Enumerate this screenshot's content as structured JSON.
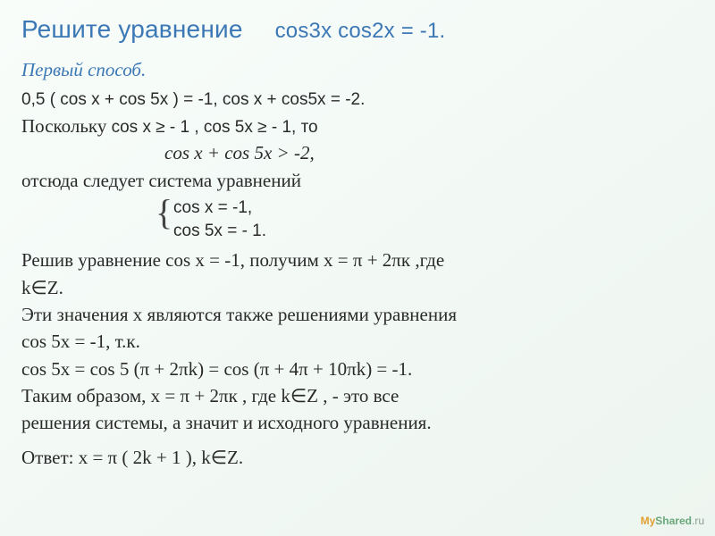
{
  "colors": {
    "title": "#3b78b5",
    "body_text": "#2a2a2a",
    "bg_top": "#f8fdfa",
    "bg_bottom": "#edf5f0",
    "logo_muted": "#8aa090",
    "logo_my": "#e0a030",
    "logo_shared": "#6aa87a"
  },
  "typography": {
    "title_family": "Arial",
    "title_size_pt": 21,
    "body_family": "Times New Roman",
    "body_size_pt": 16,
    "system_family": "Arial",
    "system_size_pt": 14
  },
  "title": {
    "label": "Решите уравнение",
    "equation": "cos3x  cos2x   =  -1."
  },
  "method_label": "Первый способ.",
  "line_transform": "0,5 ( cos x  +  cos 5x )  =  -1,      cos x  +  cos5x  =  -2.",
  "line_bound_prefix": "Поскольку ",
  "line_bound_mid": "cos x ≥  - 1 ,  cos 5x  ≥  - 1,   то",
  "line_bound_sum": "cos x  +  cos 5x  >  -2,",
  "line_hence": "отсюда следует система уравнений",
  "system": {
    "eq1": "cos x  =  -1,",
    "eq2": "cos 5x  =  - 1."
  },
  "para_solve1a": "Решив уравнение cos x  =  -1, получим  x  =  π  +  2πк ,где",
  "para_solve1b": "k∈Z.",
  "para_also1": "Эти значения  x  являются также решениями уравнения",
  "para_also2": "cos 5x  =  -1,   т.к.",
  "para_cos5": " cos 5x  =  cos 5 (π  +  2πk)  =  cos  (π   +  4π   +  10πk)  =  -1.",
  "para_thus1": "Таким образом,  x  =  π  +  2πк ,  где  k∈Z ,  -  это все",
  "para_thus2": "решения системы, а значит и исходного уравнения.",
  "answer": "Ответ:  x  =   π ( 2k  +  1 ),   k∈Z.",
  "logo": {
    "my": "My",
    "shared": "Shared",
    "suffix": ".ru"
  }
}
